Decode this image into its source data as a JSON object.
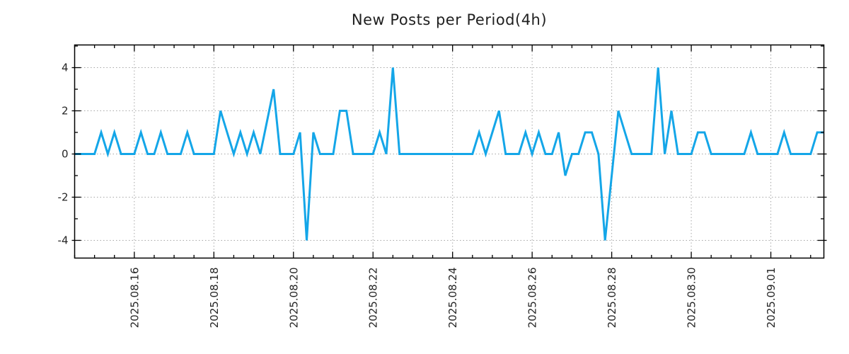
{
  "chart_data": {
    "type": "line",
    "title": "New Posts per Period(4h)",
    "period_hours": 4,
    "n_points": 114,
    "values": [
      0,
      0,
      0,
      0,
      1,
      0,
      1,
      0,
      0,
      0,
      1,
      0,
      0,
      1,
      0,
      0,
      0,
      1,
      0,
      0,
      0,
      0,
      2,
      1,
      0,
      1,
      0,
      1,
      0,
      1.5,
      3,
      0,
      0,
      0,
      1,
      -4,
      1,
      0,
      0,
      0,
      2,
      2,
      0,
      0,
      0,
      0,
      1,
      0,
      4,
      0,
      0,
      0,
      0,
      0,
      0,
      0,
      0,
      0,
      0,
      0,
      0,
      1,
      0,
      1,
      2,
      0,
      0,
      0,
      1,
      0,
      1,
      0,
      0,
      1,
      -1,
      0,
      0,
      1,
      1,
      0,
      -4,
      -1,
      2,
      1,
      0,
      0,
      0,
      0,
      4,
      0,
      2,
      0,
      0,
      0,
      1,
      1,
      0,
      0,
      0,
      0,
      0,
      0,
      1,
      0,
      0,
      0,
      0,
      1,
      0,
      0,
      0,
      0,
      1,
      1
    ],
    "x_ticks": [
      {
        "index": 9,
        "label": "2025.08.16"
      },
      {
        "index": 21,
        "label": "2025.08.18"
      },
      {
        "index": 33,
        "label": "2025.08.20"
      },
      {
        "index": 45,
        "label": "2025.08.22"
      },
      {
        "index": 57,
        "label": "2025.08.24"
      },
      {
        "index": 69,
        "label": "2025.08.26"
      },
      {
        "index": 81,
        "label": "2025.08.28"
      },
      {
        "index": 93,
        "label": "2025.08.30"
      },
      {
        "index": 105,
        "label": "2025.09.01"
      }
    ],
    "x_minor_tick_every": 3,
    "y_ticks": [
      {
        "value": 4,
        "label": "4"
      },
      {
        "value": 2,
        "label": "2"
      },
      {
        "value": 0,
        "label": "0"
      },
      {
        "value": -2,
        "label": "-2"
      },
      {
        "value": -4,
        "label": "-4"
      }
    ],
    "y_minor_ticks": [
      5,
      3,
      1,
      -1,
      -3
    ],
    "ylim": [
      -4.82,
      5.05
    ],
    "xlim": [
      0,
      113
    ],
    "grid": "dotted",
    "legend": "none",
    "colors": {
      "line": "#14a6e8",
      "grid": "#a6a6a6",
      "text": "#262626",
      "border": "#000000",
      "background": "#ffffff"
    }
  }
}
